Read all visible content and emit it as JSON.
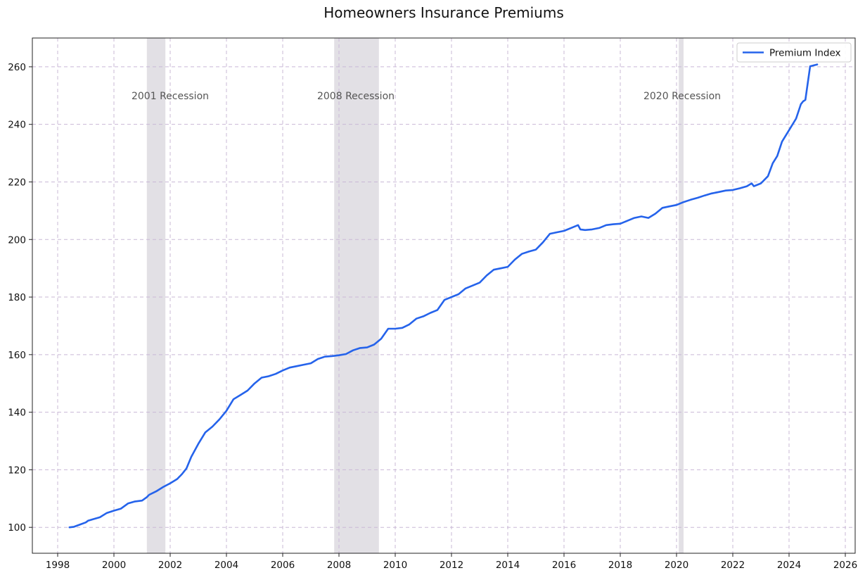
{
  "chart_data": {
    "type": "line",
    "title": "Homeowners Insurance Premiums",
    "xlabel": "",
    "ylabel": "",
    "xlim": [
      1997.1,
      2026.35
    ],
    "ylim": [
      91,
      270
    ],
    "x_ticks": [
      1998,
      2000,
      2002,
      2004,
      2006,
      2008,
      2010,
      2012,
      2014,
      2016,
      2018,
      2020,
      2022,
      2024,
      2026
    ],
    "x_tick_labels": [
      "1998",
      "2000",
      "2002",
      "2004",
      "2006",
      "2008",
      "2010",
      "2012",
      "2014",
      "2016",
      "2018",
      "2020",
      "2022",
      "2024",
      "2026"
    ],
    "y_ticks": [
      100,
      120,
      140,
      160,
      180,
      200,
      220,
      240,
      260
    ],
    "y_tick_labels": [
      "100",
      "120",
      "140",
      "160",
      "180",
      "200",
      "220",
      "240",
      "260"
    ],
    "grid": true,
    "legend": {
      "position": "top-right",
      "entries": [
        "Premium Index"
      ]
    },
    "colors": {
      "series": "#2563eb",
      "grid": "#c9b8d6",
      "recession": "#d8d6dc"
    },
    "recessions": [
      {
        "start": 2001.17,
        "end": 2001.83,
        "label": "2001 Recession",
        "label_x": 2002.0
      },
      {
        "start": 2007.83,
        "end": 2009.42,
        "label": "2008 Recession",
        "label_x": 2008.6
      },
      {
        "start": 2020.08,
        "end": 2020.25,
        "label": "2020 Recession",
        "label_x": 2020.2
      }
    ],
    "recession_label_y": 250,
    "series": [
      {
        "name": "Premium Index",
        "x": [
          1998.42,
          1998.58,
          1998.75,
          1999.0,
          1999.08,
          1999.25,
          1999.5,
          1999.75,
          2000.0,
          2000.25,
          2000.5,
          2000.75,
          2001.0,
          2001.17,
          2001.25,
          2001.5,
          2001.75,
          2002.0,
          2002.25,
          2002.42,
          2002.58,
          2002.75,
          2003.0,
          2003.25,
          2003.5,
          2003.75,
          2004.0,
          2004.25,
          2004.5,
          2004.75,
          2005.0,
          2005.25,
          2005.5,
          2005.75,
          2006.0,
          2006.25,
          2006.5,
          2006.75,
          2007.0,
          2007.25,
          2007.5,
          2007.75,
          2008.0,
          2008.25,
          2008.5,
          2008.75,
          2009.0,
          2009.25,
          2009.5,
          2009.75,
          2010.0,
          2010.25,
          2010.5,
          2010.75,
          2011.0,
          2011.25,
          2011.5,
          2011.75,
          2012.0,
          2012.25,
          2012.5,
          2012.75,
          2013.0,
          2013.25,
          2013.5,
          2013.75,
          2014.0,
          2014.25,
          2014.5,
          2014.75,
          2015.0,
          2015.25,
          2015.5,
          2015.75,
          2016.0,
          2016.25,
          2016.5,
          2016.58,
          2016.75,
          2017.0,
          2017.25,
          2017.5,
          2017.75,
          2018.0,
          2018.25,
          2018.5,
          2018.75,
          2019.0,
          2019.25,
          2019.5,
          2019.75,
          2020.0,
          2020.25,
          2020.5,
          2020.75,
          2021.0,
          2021.25,
          2021.5,
          2021.75,
          2022.0,
          2022.25,
          2022.5,
          2022.67,
          2022.75,
          2023.0,
          2023.25,
          2023.42,
          2023.58,
          2023.75,
          2024.0,
          2024.25,
          2024.42,
          2024.5,
          2024.58,
          2024.75,
          2025.0
        ],
        "values": [
          100.0,
          100.2,
          100.8,
          101.7,
          102.3,
          102.8,
          103.5,
          105.0,
          105.8,
          106.5,
          108.3,
          109.0,
          109.3,
          110.5,
          111.3,
          112.5,
          114.0,
          115.3,
          116.8,
          118.5,
          120.5,
          124.5,
          129.0,
          133.0,
          135.0,
          137.5,
          140.5,
          144.5,
          146.0,
          147.5,
          150.0,
          152.0,
          152.5,
          153.3,
          154.5,
          155.5,
          156.0,
          156.5,
          157.0,
          158.5,
          159.3,
          159.5,
          159.8,
          160.2,
          161.5,
          162.3,
          162.5,
          163.5,
          165.5,
          169.0,
          169.0,
          169.3,
          170.5,
          172.5,
          173.3,
          174.5,
          175.5,
          179.0,
          180.0,
          181.0,
          183.0,
          184.0,
          185.0,
          187.5,
          189.5,
          190.0,
          190.5,
          193.0,
          195.0,
          195.8,
          196.5,
          199.0,
          202.0,
          202.5,
          203.0,
          204.0,
          205.0,
          203.5,
          203.3,
          203.5,
          204.0,
          205.0,
          205.3,
          205.5,
          206.5,
          207.5,
          208.0,
          207.5,
          209.0,
          211.0,
          211.5,
          212.0,
          213.0,
          213.8,
          214.5,
          215.3,
          216.0,
          216.5,
          217.0,
          217.2,
          217.8,
          218.5,
          219.5,
          218.5,
          219.5,
          222.0,
          226.5,
          229.0,
          234.0,
          238.0,
          242.0,
          247.0,
          248.0,
          248.5,
          260.2,
          260.8
        ]
      }
    ]
  }
}
